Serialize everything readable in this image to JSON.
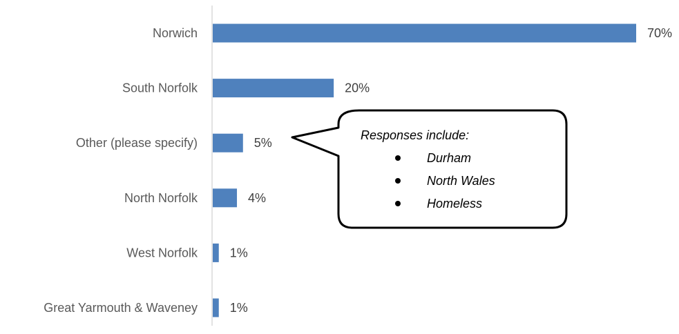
{
  "chart_data": {
    "type": "bar",
    "orientation": "horizontal",
    "categories": [
      "Norwich",
      "South Norfolk",
      "Other (please specify)",
      "North Norfolk",
      "West Norfolk",
      "Great Yarmouth & Waveney"
    ],
    "values": [
      70,
      20,
      5,
      4,
      1,
      1
    ],
    "value_labels": [
      "70%",
      "20%",
      "5%",
      "4%",
      "1%",
      "1%"
    ],
    "xlim": [
      0,
      70
    ],
    "grid": false,
    "bar_color": "#4F81BD",
    "annotation": {
      "title": "Responses include:",
      "items": [
        "Durham",
        "North Wales",
        "Homeless"
      ],
      "points_to": "Other (please specify)"
    }
  }
}
